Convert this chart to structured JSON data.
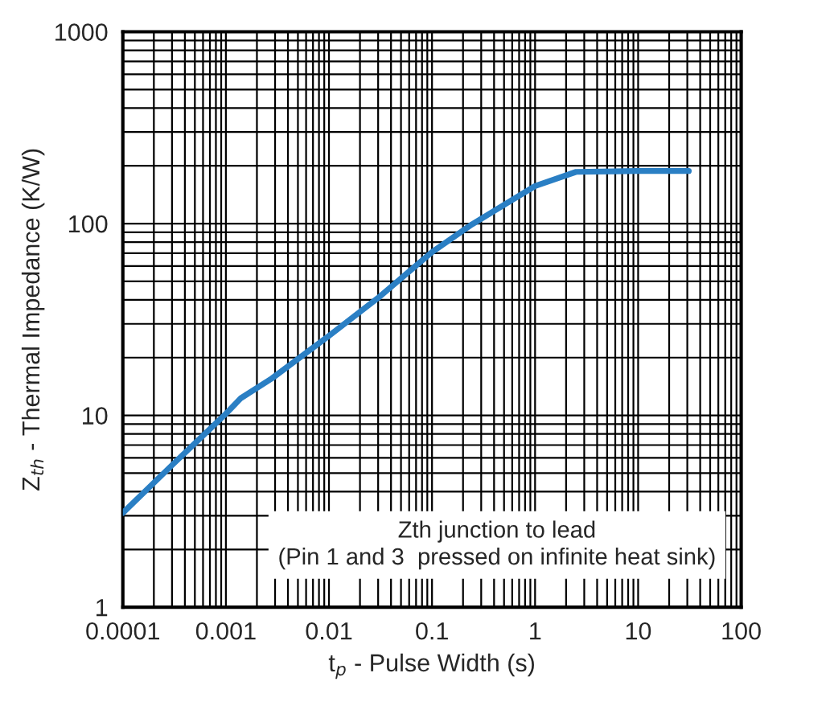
{
  "chart_data": {
    "type": "line",
    "xlabel": "t$_{p}$ - Pulse Width (s)",
    "ylabel": "Z$_{th}$ - Thermal Impedance (K/W)",
    "log": "xy",
    "grid": true,
    "legend": false,
    "marker": "none",
    "line_style": "solid",
    "xlim": [
      0.0001,
      100
    ],
    "ylim": [
      1,
      1000
    ],
    "xticks": [
      {
        "value": 0.0001,
        "label": "0.0001"
      },
      {
        "value": 0.001,
        "label": "0.001"
      },
      {
        "value": 0.01,
        "label": "0.01"
      },
      {
        "value": 0.1,
        "label": "0.1"
      },
      {
        "value": 1,
        "label": "1"
      },
      {
        "value": 10,
        "label": "10"
      },
      {
        "value": 100,
        "label": "100"
      }
    ],
    "yticks": [
      1,
      10,
      100,
      1000
    ],
    "series": [
      {
        "color": "#2a7fc4",
        "x": [
          0.0001,
          0.0003,
          0.001,
          0.0014,
          0.0028,
          0.01,
          0.03,
          0.1,
          0.244,
          1,
          2.5,
          10,
          31
        ],
        "values": [
          3.1,
          5.5,
          10.2,
          12.3,
          15.6,
          26,
          41,
          71,
          99,
          157,
          186,
          188,
          188
        ]
      }
    ],
    "annotations": [
      "Zth junction to lead\n(Pin 1 and 3  pressed on infinite heat sink)"
    ]
  }
}
